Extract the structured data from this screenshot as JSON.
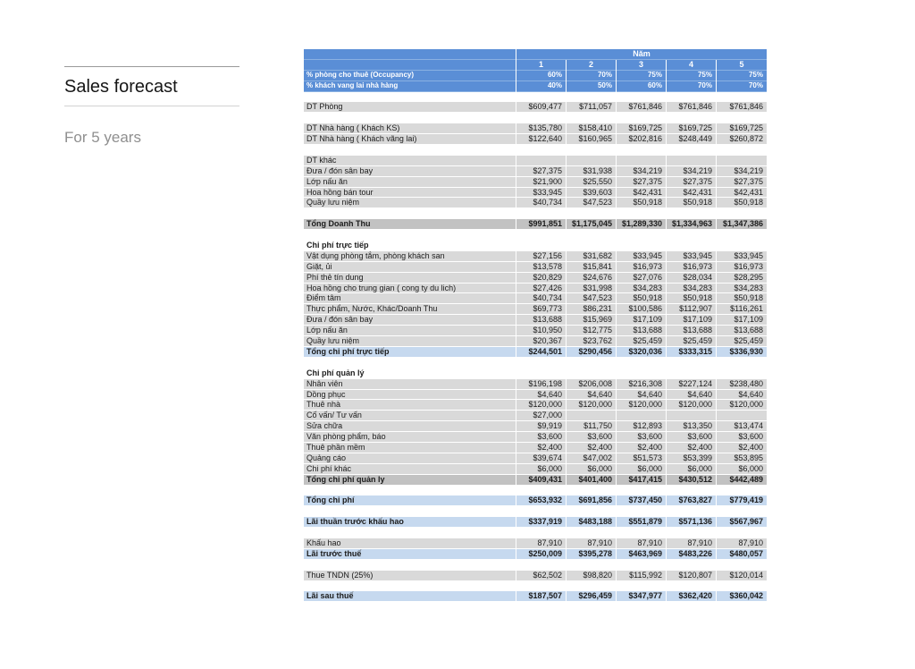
{
  "page": {
    "title": "Sales forecast",
    "subtitle": "For 5 years"
  },
  "colors": {
    "header-blue": "#5a8ed6",
    "blue-divider": "#8ab1e2",
    "row-gray": "#d9d9d9",
    "total-gray": "#c2c2c2",
    "total-blue": "#c6d9ef"
  },
  "table": {
    "year_label": "Năm",
    "columns": [
      "1",
      "2",
      "3",
      "4",
      "5"
    ],
    "rows": [
      {
        "type": "pct",
        "label": "% phòng cho thuê (Occupancy)",
        "values": [
          "60%",
          "70%",
          "75%",
          "75%",
          "75%"
        ]
      },
      {
        "type": "pct",
        "label": "% khách vang lai nhà hàng",
        "values": [
          "40%",
          "50%",
          "60%",
          "70%",
          "70%"
        ]
      },
      {
        "type": "blank"
      },
      {
        "type": "data",
        "label": "DT Phòng",
        "values": [
          "$609,477",
          "$711,057",
          "$761,846",
          "$761,846",
          "$761,846"
        ]
      },
      {
        "type": "blank"
      },
      {
        "type": "data",
        "label": "DT Nhà hàng ( Khách KS)",
        "values": [
          "$135,780",
          "$158,410",
          "$169,725",
          "$169,725",
          "$169,725"
        ]
      },
      {
        "type": "data",
        "label": "DT Nhà hàng ( Khách vãng lai)",
        "values": [
          "$122,640",
          "$160,965",
          "$202,816",
          "$248,449",
          "$260,872"
        ]
      },
      {
        "type": "blank"
      },
      {
        "type": "data",
        "label": "DT khác",
        "values": [
          "",
          "",
          "",
          "",
          ""
        ]
      },
      {
        "type": "data",
        "label": "Đưa / đón sân bay",
        "values": [
          "$27,375",
          "$31,938",
          "$34,219",
          "$34,219",
          "$34,219"
        ]
      },
      {
        "type": "data",
        "label": "Lớp nấu ăn",
        "values": [
          "$21,900",
          "$25,550",
          "$27,375",
          "$27,375",
          "$27,375"
        ]
      },
      {
        "type": "data",
        "label": "Hoa hồng bán tour",
        "values": [
          "$33,945",
          "$39,603",
          "$42,431",
          "$42,431",
          "$42,431"
        ]
      },
      {
        "type": "data",
        "label": "Quầy lưu niệm",
        "values": [
          "$40,734",
          "$47,523",
          "$50,918",
          "$50,918",
          "$50,918"
        ]
      },
      {
        "type": "blank"
      },
      {
        "type": "total_gray",
        "label": "Tổng Doanh Thu",
        "values": [
          "$991,851",
          "$1,175,045",
          "$1,289,330",
          "$1,334,963",
          "$1,347,386"
        ]
      },
      {
        "type": "blank"
      },
      {
        "type": "section",
        "label": "Chi phí trực tiếp",
        "values": [
          "",
          "",
          "",
          "",
          ""
        ]
      },
      {
        "type": "data",
        "label": "Vật dụng phòng tắm, phòng khách san",
        "values": [
          "$27,156",
          "$31,682",
          "$33,945",
          "$33,945",
          "$33,945"
        ]
      },
      {
        "type": "data",
        "label": "Giặt, ủi",
        "values": [
          "$13,578",
          "$15,841",
          "$16,973",
          "$16,973",
          "$16,973"
        ]
      },
      {
        "type": "data",
        "label": "Phí thẻ tín dung",
        "values": [
          "$20,829",
          "$24,676",
          "$27,076",
          "$28,034",
          "$28,295"
        ]
      },
      {
        "type": "data",
        "label": "Hoa hồng cho trung gian ( cong ty du lich)",
        "values": [
          "$27,426",
          "$31,998",
          "$34,283",
          "$34,283",
          "$34,283"
        ]
      },
      {
        "type": "data",
        "label": "Điểm tâm",
        "values": [
          "$40,734",
          "$47,523",
          "$50,918",
          "$50,918",
          "$50,918"
        ]
      },
      {
        "type": "data",
        "label": "Thực phẩm, Nước, Khác/Doanh Thu",
        "values": [
          "$69,773",
          "$86,231",
          "$100,586",
          "$112,907",
          "$116,261"
        ]
      },
      {
        "type": "data",
        "label": "Đưa / đón sân bay",
        "values": [
          "$13,688",
          "$15,969",
          "$17,109",
          "$17,109",
          "$17,109"
        ]
      },
      {
        "type": "data",
        "label": "Lớp nấu ăn",
        "values": [
          "$10,950",
          "$12,775",
          "$13,688",
          "$13,688",
          "$13,688"
        ]
      },
      {
        "type": "data",
        "label": "Quầy lưu niệm",
        "values": [
          "$20,367",
          "$23,762",
          "$25,459",
          "$25,459",
          "$25,459"
        ]
      },
      {
        "type": "total_blue",
        "label": "Tổng chi phí trực tiếp",
        "values": [
          "$244,501",
          "$290,456",
          "$320,036",
          "$333,315",
          "$336,930"
        ]
      },
      {
        "type": "blank"
      },
      {
        "type": "section",
        "label": "Chi phí quản lý",
        "values": [
          "",
          "",
          "",
          "",
          ""
        ]
      },
      {
        "type": "data",
        "label": "Nhân viên",
        "values": [
          "$196,198",
          "$206,008",
          "$216,308",
          "$227,124",
          "$238,480"
        ]
      },
      {
        "type": "data",
        "label": "Dồng phục",
        "values": [
          "$4,640",
          "$4,640",
          "$4,640",
          "$4,640",
          "$4,640"
        ]
      },
      {
        "type": "data",
        "label": "Thuê nhà",
        "values": [
          "$120,000",
          "$120,000",
          "$120,000",
          "$120,000",
          "$120,000"
        ]
      },
      {
        "type": "data",
        "label": "Cố vấn/ Tư vấn",
        "values": [
          "$27,000",
          "",
          "",
          "",
          ""
        ]
      },
      {
        "type": "data",
        "label": "Sửa chữa",
        "values": [
          "$9,919",
          "$11,750",
          "$12,893",
          "$13,350",
          "$13,474"
        ]
      },
      {
        "type": "data",
        "label": "Văn phòng phẩm, báo",
        "values": [
          "$3,600",
          "$3,600",
          "$3,600",
          "$3,600",
          "$3,600"
        ]
      },
      {
        "type": "data",
        "label": "Thuê phần mềm",
        "values": [
          "$2,400",
          "$2,400",
          "$2,400",
          "$2,400",
          "$2,400"
        ]
      },
      {
        "type": "data",
        "label": "Quảng cáo",
        "values": [
          "$39,674",
          "$47,002",
          "$51,573",
          "$53,399",
          "$53,895"
        ]
      },
      {
        "type": "data",
        "label": "Chi phí khác",
        "values": [
          "$6,000",
          "$6,000",
          "$6,000",
          "$6,000",
          "$6,000"
        ]
      },
      {
        "type": "total_gray",
        "label": "Tổng chi phí quản ly",
        "values": [
          "$409,431",
          "$401,400",
          "$417,415",
          "$430,512",
          "$442,489"
        ]
      },
      {
        "type": "blank"
      },
      {
        "type": "total_blue",
        "label": "Tổng chi phí",
        "values": [
          "$653,932",
          "$691,856",
          "$737,450",
          "$763,827",
          "$779,419"
        ]
      },
      {
        "type": "blank"
      },
      {
        "type": "total_blue",
        "label": "Lãi thuần trước khấu hao",
        "values": [
          "$337,919",
          "$483,188",
          "$551,879",
          "$571,136",
          "$567,967"
        ]
      },
      {
        "type": "blank"
      },
      {
        "type": "data",
        "label": "Khấu hao",
        "values": [
          "87,910",
          "87,910",
          "87,910",
          "87,910",
          "87,910"
        ]
      },
      {
        "type": "total_blue",
        "label": "Lãi trước thuế",
        "values": [
          "$250,009",
          "$395,278",
          "$463,969",
          "$483,226",
          "$480,057"
        ]
      },
      {
        "type": "blank"
      },
      {
        "type": "data",
        "label": "Thue TNDN (25%)",
        "values": [
          "$62,502",
          "$98,820",
          "$115,992",
          "$120,807",
          "$120,014"
        ]
      },
      {
        "type": "blank"
      },
      {
        "type": "total_blue",
        "label": "Lãi sau thuế",
        "values": [
          "$187,507",
          "$296,459",
          "$347,977",
          "$362,420",
          "$360,042"
        ]
      }
    ]
  }
}
